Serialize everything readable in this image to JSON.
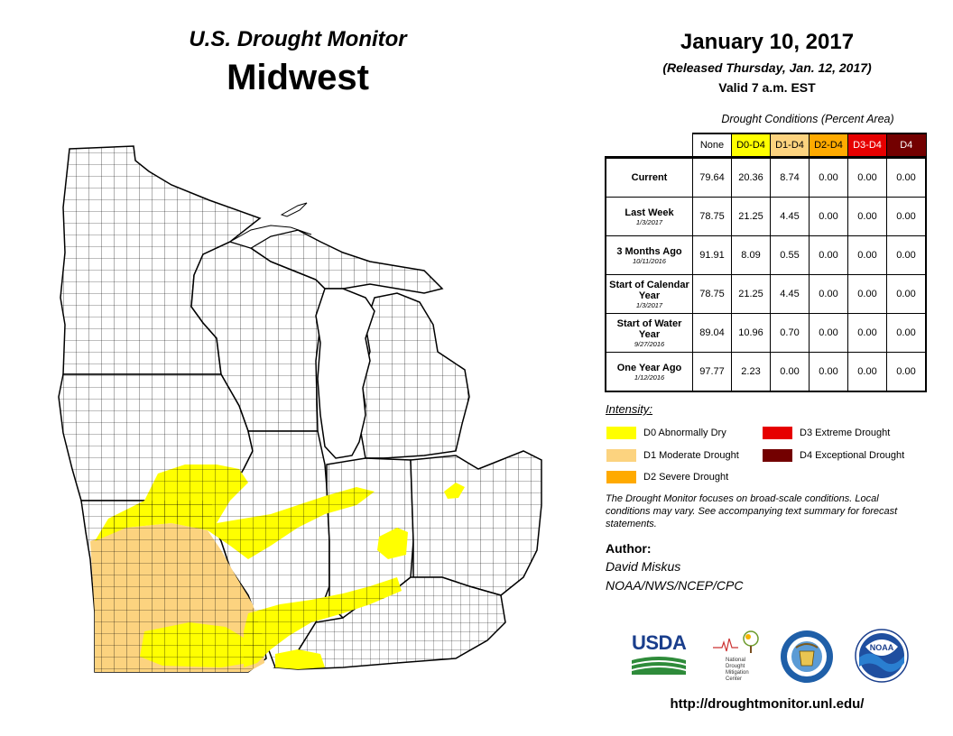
{
  "header": {
    "brand": "U.S. Drought Monitor",
    "region": "Midwest",
    "date": "January 10, 2017",
    "released": "(Released Thursday, Jan. 12, 2017)",
    "valid": "Valid  7 a.m. EST"
  },
  "table": {
    "title": "Drought Conditions (Percent Area)",
    "columns": [
      {
        "label": "None",
        "color": "#ffffff"
      },
      {
        "label": "D0-D4",
        "color": "#ffff00"
      },
      {
        "label": "D1-D4",
        "color": "#fcd37f"
      },
      {
        "label": "D2-D4",
        "color": "#ffaa00"
      },
      {
        "label": "D3-D4",
        "color": "#e60000"
      },
      {
        "label": "D4",
        "color": "#730000"
      }
    ],
    "rows": [
      {
        "label": "Current",
        "sub": "",
        "values": [
          "79.64",
          "20.36",
          "8.74",
          "0.00",
          "0.00",
          "0.00"
        ]
      },
      {
        "label": "Last Week",
        "sub": "1/3/2017",
        "values": [
          "78.75",
          "21.25",
          "4.45",
          "0.00",
          "0.00",
          "0.00"
        ]
      },
      {
        "label": "3 Months Ago",
        "sub": "10/11/2016",
        "values": [
          "91.91",
          "8.09",
          "0.55",
          "0.00",
          "0.00",
          "0.00"
        ]
      },
      {
        "label": "Start of Calendar Year",
        "sub": "1/3/2017",
        "values": [
          "78.75",
          "21.25",
          "4.45",
          "0.00",
          "0.00",
          "0.00"
        ]
      },
      {
        "label": "Start of Water Year",
        "sub": "9/27/2016",
        "values": [
          "89.04",
          "10.96",
          "0.70",
          "0.00",
          "0.00",
          "0.00"
        ]
      },
      {
        "label": "One Year Ago",
        "sub": "1/12/2016",
        "values": [
          "97.77",
          "2.23",
          "0.00",
          "0.00",
          "0.00",
          "0.00"
        ]
      }
    ]
  },
  "legend": {
    "title": "Intensity:",
    "items": [
      {
        "label": "D0 Abnormally Dry",
        "color": "#ffff00"
      },
      {
        "label": "D1 Moderate Drought",
        "color": "#fcd37f"
      },
      {
        "label": "D2 Severe Drought",
        "color": "#ffaa00"
      },
      {
        "label": "D3 Extreme Drought",
        "color": "#e60000"
      },
      {
        "label": "D4 Exceptional Drought",
        "color": "#730000"
      }
    ]
  },
  "note": "The Drought Monitor focuses on broad-scale conditions. Local conditions may vary. See accompanying text summary for forecast statements.",
  "author": {
    "label": "Author:",
    "name": "David Miskus",
    "org": "NOAA/NWS/NCEP/CPC"
  },
  "logos": {
    "usda": "USDA",
    "ndmc": "National Drought Mitigation Center",
    "doc": "seal-icon",
    "noaa": "NOAA"
  },
  "url": "http://droughtmonitor.unl.edu/",
  "map": {
    "region": "Midwest",
    "states": [
      "Minnesota",
      "Wisconsin",
      "Michigan",
      "Iowa",
      "Illinois",
      "Indiana",
      "Ohio",
      "Missouri",
      "Kentucky"
    ],
    "drought_classes_shown": [
      "D0",
      "D1"
    ]
  }
}
